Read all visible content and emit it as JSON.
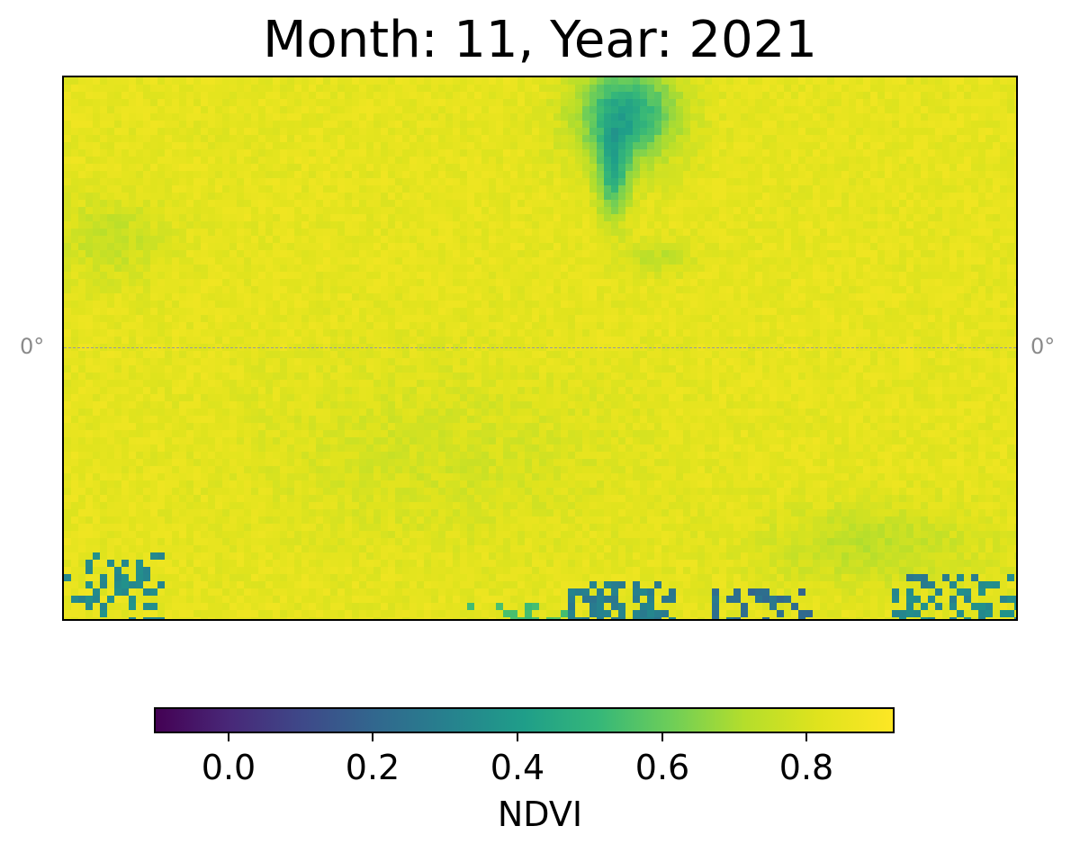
{
  "title": "Month: 11, Year: 2021",
  "map": {
    "latitude_labels": {
      "left": "0°",
      "right": "0°"
    },
    "equator_gridline": "dashed gray"
  },
  "colorbar": {
    "label": "NDVI",
    "colormap": "viridis",
    "range": [
      -0.1,
      0.92
    ],
    "ticks": [
      "0.0",
      "0.2",
      "0.4",
      "0.6",
      "0.8"
    ]
  },
  "colors": {
    "dominant_vegetation": "#e0e31d",
    "moderate_vegetation": "#8fd744",
    "low_vegetation": "#22a884",
    "water_or_bare": "#3b528b"
  }
}
